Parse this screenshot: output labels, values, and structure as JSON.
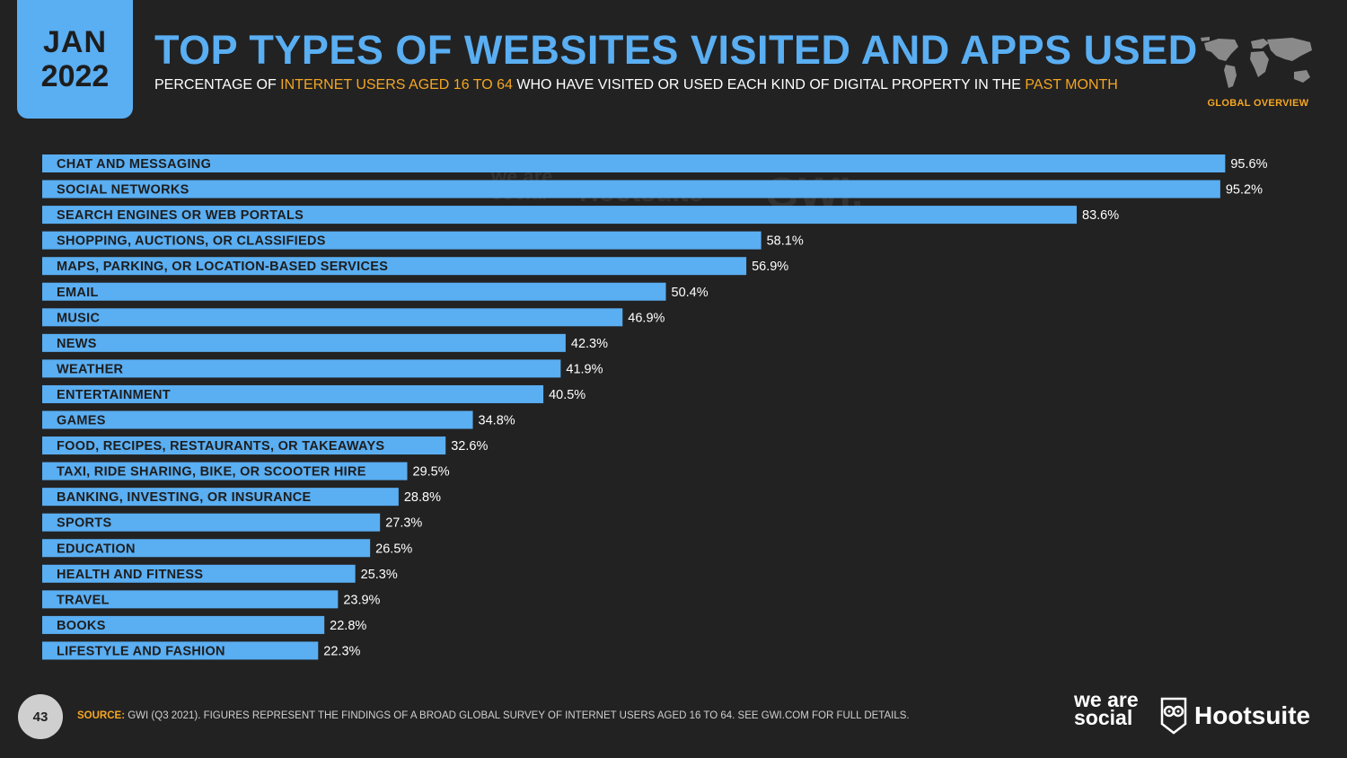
{
  "badge": {
    "month": "JAN",
    "year": "2022"
  },
  "header": {
    "title": "TOP TYPES OF WEBSITES VISITED AND APPS USED",
    "subtitle_parts": {
      "p1": "PERCENTAGE OF ",
      "h1": "INTERNET USERS AGED 16 TO 64",
      "p2": " WHO HAVE VISITED OR USED EACH KIND OF DIGITAL PROPERTY IN THE ",
      "h2": "PAST MONTH"
    },
    "region_label": "GLOBAL OVERVIEW"
  },
  "watermarks": {
    "weare": "we are social",
    "hootsuite": "Hootsuite",
    "gwi": "GWI."
  },
  "footer": {
    "page_number": "43",
    "source_label": "SOURCE:",
    "source_text": " GWI (Q3 2021). FIGURES REPRESENT THE FINDINGS OF A BROAD GLOBAL SURVEY OF INTERNET USERS AGED 16 TO 64. SEE GWI.COM FOR FULL DETAILS.",
    "logo_weare": "we are social",
    "logo_hootsuite": "Hootsuite"
  },
  "colors": {
    "bar": "#5aaef2",
    "background": "#222222",
    "accent": "#f5a623",
    "bar_label": "#1d1d1d"
  },
  "icons": {
    "world_map": "world-map-icon",
    "owl": "hootsuite-owl-icon"
  },
  "chart_data": {
    "type": "bar",
    "orientation": "horizontal",
    "categories": [
      "CHAT AND MESSAGING",
      "SOCIAL NETWORKS",
      "SEARCH ENGINES OR WEB PORTALS",
      "SHOPPING, AUCTIONS, OR CLASSIFIEDS",
      "MAPS, PARKING, OR LOCATION-BASED SERVICES",
      "EMAIL",
      "MUSIC",
      "NEWS",
      "WEATHER",
      "ENTERTAINMENT",
      "GAMES",
      "FOOD, RECIPES, RESTAURANTS, OR TAKEAWAYS",
      "TAXI, RIDE SHARING, BIKE, OR SCOOTER HIRE",
      "BANKING, INVESTING, OR INSURANCE",
      "SPORTS",
      "EDUCATION",
      "HEALTH AND FITNESS",
      "TRAVEL",
      "BOOKS",
      "LIFESTYLE AND FASHION"
    ],
    "values": [
      95.6,
      95.2,
      83.6,
      58.1,
      56.9,
      50.4,
      46.9,
      42.3,
      41.9,
      40.5,
      34.8,
      32.6,
      29.5,
      28.8,
      27.3,
      26.5,
      25.3,
      23.9,
      22.8,
      22.3
    ],
    "value_labels": [
      "95.6%",
      "95.2%",
      "83.6%",
      "58.1%",
      "56.9%",
      "50.4%",
      "46.9%",
      "42.3%",
      "41.9%",
      "40.5%",
      "34.8%",
      "32.6%",
      "29.5%",
      "28.8%",
      "27.3%",
      "26.5%",
      "25.3%",
      "23.9%",
      "22.8%",
      "22.3%"
    ],
    "xlim": [
      0,
      100
    ],
    "grid": false,
    "legend": "none"
  }
}
